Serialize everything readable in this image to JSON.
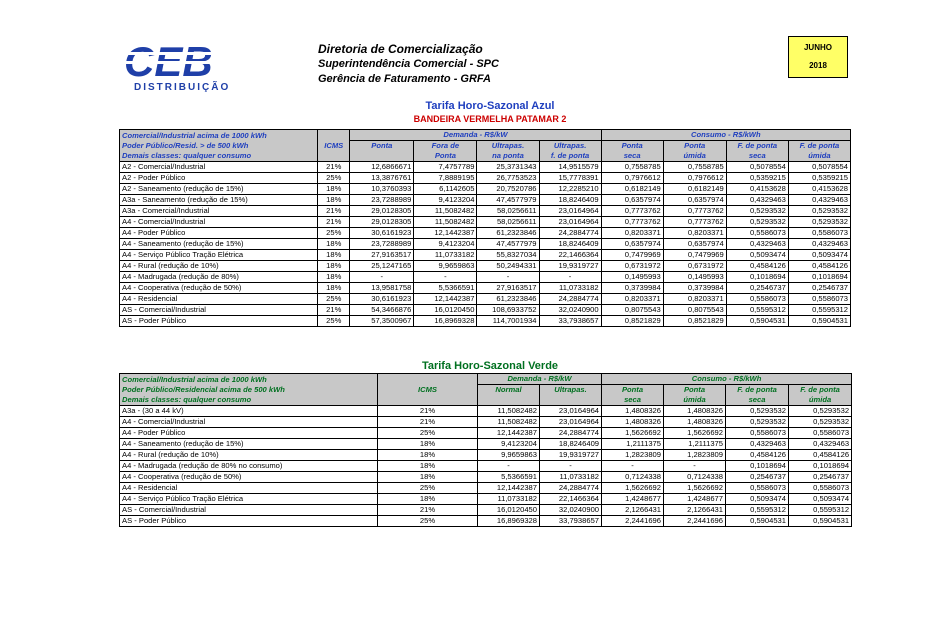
{
  "logo": {
    "letters": "CEB",
    "sub": "DISTRIBUIÇÃO"
  },
  "header": {
    "line1": "Diretoria de Comercialização",
    "line2": "Superintendência Comercial - SPC",
    "line3": "Gerência de Faturamento - GRFA"
  },
  "date": {
    "month": "JUNHO",
    "year": "2018"
  },
  "azul": {
    "title": "Tarifa Horo-Sazonal Azul",
    "subtitle": "BANDEIRA VERMELHA PATAMAR 2",
    "class_lines": [
      "Comercial/Industrial acima de 1000 kWh",
      "Poder Público/Resid. > de 500 kWh",
      "Demais classes: qualquer consumo"
    ],
    "icms_label": "ICMS",
    "demanda_label": "Demanda - R$/kW",
    "consumo_label": "Consumo - R$/kWh",
    "cols": [
      [
        "Ponta",
        ""
      ],
      [
        "Fora de",
        "Ponta"
      ],
      [
        "Ultrapas.",
        "na ponta"
      ],
      [
        "Ultrapas.",
        "f. de ponta"
      ],
      [
        "Ponta",
        "seca"
      ],
      [
        "Ponta",
        "úmida"
      ],
      [
        "F. de ponta",
        "seca"
      ],
      [
        "F. de ponta",
        "úmida"
      ]
    ],
    "rows": [
      [
        "A2 - Comercial/Industrial",
        "21%",
        "12,6866671",
        "7,4757789",
        "25,3731343",
        "14,9515579",
        "0,7558785",
        "0,7558785",
        "0,5078554",
        "0,5078554"
      ],
      [
        "A2 - Poder Público",
        "25%",
        "13,3876761",
        "7,8889195",
        "26,7753523",
        "15,7778391",
        "0,7976612",
        "0,7976612",
        "0,5359215",
        "0,5359215"
      ],
      [
        "A2 - Saneamento (redução de 15%)",
        "18%",
        "10,3760393",
        "6,1142605",
        "20,7520786",
        "12,2285210",
        "0,6182149",
        "0,6182149",
        "0,4153628",
        "0,4153628"
      ],
      [
        "A3a - Saneamento (redução de 15%)",
        "18%",
        "23,7288989",
        "9,4123204",
        "47,4577979",
        "18,8246409",
        "0,6357974",
        "0,6357974",
        "0,4329463",
        "0,4329463"
      ],
      [
        "A3a - Comercial/Industrial",
        "21%",
        "29,0128305",
        "11,5082482",
        "58,0256611",
        "23,0164964",
        "0,7773762",
        "0,7773762",
        "0,5293532",
        "0,5293532"
      ],
      [
        "A4 - Comercial/Industrial",
        "21%",
        "29,0128305",
        "11,5082482",
        "58,0256611",
        "23,0164964",
        "0,7773762",
        "0,7773762",
        "0,5293532",
        "0,5293532"
      ],
      [
        "A4 - Poder Público",
        "25%",
        "30,6161923",
        "12,1442387",
        "61,2323846",
        "24,2884774",
        "0,8203371",
        "0,8203371",
        "0,5586073",
        "0,5586073"
      ],
      [
        "A4 - Saneamento (redução de 15%)",
        "18%",
        "23,7288989",
        "9,4123204",
        "47,4577979",
        "18,8246409",
        "0,6357974",
        "0,6357974",
        "0,4329463",
        "0,4329463"
      ],
      [
        "A4 - Serviço Público Tração Elétrica",
        "18%",
        "27,9163517",
        "11,0733182",
        "55,8327034",
        "22,1466364",
        "0,7479969",
        "0,7479969",
        "0,5093474",
        "0,5093474"
      ],
      [
        "A4 - Rural (redução de 10%)",
        "18%",
        "25,1247165",
        "9,9659863",
        "50,2494331",
        "19,9319727",
        "0,6731972",
        "0,6731972",
        "0,4584126",
        "0,4584126"
      ],
      [
        "A4 - Madrugada (redução de 80%)",
        "18%",
        "-",
        "-",
        "-",
        "-",
        "0,1495993",
        "0,1495993",
        "0,1018694",
        "0,1018694"
      ],
      [
        "A4 - Cooperativa (redução de 50%)",
        "18%",
        "13,9581758",
        "5,5366591",
        "27,9163517",
        "11,0733182",
        "0,3739984",
        "0,3739984",
        "0,2546737",
        "0,2546737"
      ],
      [
        "A4 - Residencial",
        "25%",
        "30,6161923",
        "12,1442387",
        "61,2323846",
        "24,2884774",
        "0,8203371",
        "0,8203371",
        "0,5586073",
        "0,5586073"
      ],
      [
        "AS - Comercial/Industrial",
        "21%",
        "54,3466876",
        "16,0120450",
        "108,6933752",
        "32,0240900",
        "0,8075543",
        "0,8075543",
        "0,5595312",
        "0,5595312"
      ],
      [
        "AS - Poder Público",
        "25%",
        "57,3500967",
        "16,8969328",
        "114,7001934",
        "33,7938657",
        "0,8521829",
        "0,8521829",
        "0,5904531",
        "0,5904531"
      ]
    ]
  },
  "verde": {
    "title": "Tarifa Horo-Sazonal Verde",
    "class_lines": [
      "Comercial/Industrial acima de 1000 kWh",
      "Poder Público/Residencial acima de 500 kWh",
      "Demais classes: qualquer consumo"
    ],
    "icms_label": "ICMS",
    "demanda_label": "Demanda - R$/kW",
    "consumo_label": "Consumo - R$/kWh",
    "cols": [
      [
        "Normal",
        ""
      ],
      [
        "Ultrapas.",
        ""
      ],
      [
        "Ponta",
        "seca"
      ],
      [
        "Ponta",
        "úmida"
      ],
      [
        "F. de ponta",
        "seca"
      ],
      [
        "F. de ponta",
        "úmida"
      ]
    ],
    "rows": [
      [
        "A3a - (30 a 44 kV)",
        "21%",
        "11,5082482",
        "23,0164964",
        "1,4808326",
        "1,4808326",
        "0,5293532",
        "0,5293532"
      ],
      [
        "A4 - Comercial/Industrial",
        "21%",
        "11,5082482",
        "23,0164964",
        "1,4808326",
        "1,4808326",
        "0,5293532",
        "0,5293532"
      ],
      [
        "A4 - Poder  Público",
        "25%",
        "12,1442387",
        "24,2884774",
        "1,5626692",
        "1,5626692",
        "0,5586073",
        "0,5586073"
      ],
      [
        "A4 - Saneamento (redução de 15%)",
        "18%",
        "9,4123204",
        "18,8246409",
        "1,2111375",
        "1,2111375",
        "0,4329463",
        "0,4329463"
      ],
      [
        "A4 - Rural (redução de 10%)",
        "18%",
        "9,9659863",
        "19,9319727",
        "1,2823809",
        "1,2823809",
        "0,4584126",
        "0,4584126"
      ],
      [
        "A4 - Madrugada (redução de 80% no consumo)",
        "18%",
        "-",
        "-",
        "-",
        "-",
        "0,1018694",
        "0,1018694"
      ],
      [
        "A4 - Cooperativa (redução de  50%)",
        "18%",
        "5,5366591",
        "11,0733182",
        "0,7124338",
        "0,7124338",
        "0,2546737",
        "0,2546737"
      ],
      [
        "A4 - Residencial",
        "25%",
        "12,1442387",
        "24,2884774",
        "1,5626692",
        "1,5626692",
        "0,5586073",
        "0,5586073"
      ],
      [
        "A4 - Serviço Público Tração Elétrica",
        "18%",
        "11,0733182",
        "22,1466364",
        "1,4248677",
        "1,4248677",
        "0,5093474",
        "0,5093474"
      ],
      [
        "AS - Comercial/Industrial",
        "21%",
        "16,0120450",
        "32,0240900",
        "2,1266431",
        "2,1266431",
        "0,5595312",
        "0,5595312"
      ],
      [
        "AS - Poder Público",
        "25%",
        "16,8969328",
        "33,7938657",
        "2,2441696",
        "2,2441696",
        "0,5904531",
        "0,5904531"
      ]
    ]
  }
}
